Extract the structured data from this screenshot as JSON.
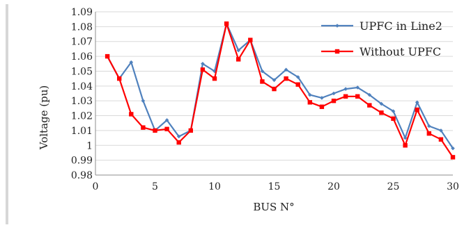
{
  "chart_data": {
    "type": "line",
    "title": "",
    "xlabel": "BUS N°",
    "ylabel": "Voltage (pu)",
    "xlim": [
      0,
      30
    ],
    "ylim": [
      0.98,
      1.09
    ],
    "x_ticks": [
      "0",
      "5",
      "10",
      "15",
      "20",
      "25",
      "30"
    ],
    "y_ticks": [
      "0.98",
      "0.99",
      "1",
      "1.01",
      "1.02",
      "1.03",
      "1.04",
      "1.05",
      "1.06",
      "1.07",
      "1.08",
      "1.09"
    ],
    "grid": "horizontal",
    "legend_position": "top-right",
    "x": [
      1,
      2,
      3,
      4,
      5,
      6,
      7,
      8,
      9,
      10,
      11,
      12,
      13,
      14,
      15,
      16,
      17,
      18,
      19,
      20,
      21,
      22,
      23,
      24,
      25,
      26,
      27,
      28,
      29,
      30
    ],
    "series": [
      {
        "name": "UPFC in Line2",
        "color": "#4f81bd",
        "marker": "diamond",
        "values": [
          1.06,
          1.045,
          1.056,
          1.03,
          1.01,
          1.017,
          1.006,
          1.01,
          1.055,
          1.05,
          1.082,
          1.064,
          1.071,
          1.05,
          1.044,
          1.051,
          1.046,
          1.034,
          1.032,
          1.035,
          1.038,
          1.039,
          1.034,
          1.028,
          1.023,
          1.005,
          1.029,
          1.013,
          1.01,
          0.998
        ]
      },
      {
        "name": "Without UPFC",
        "color": "#ff0000",
        "marker": "square",
        "values": [
          1.06,
          1.045,
          1.021,
          1.012,
          1.01,
          1.011,
          1.002,
          1.01,
          1.051,
          1.045,
          1.082,
          1.058,
          1.071,
          1.043,
          1.038,
          1.045,
          1.041,
          1.029,
          1.026,
          1.03,
          1.033,
          1.033,
          1.027,
          1.022,
          1.018,
          1.0,
          1.024,
          1.008,
          1.004,
          0.992
        ]
      }
    ]
  }
}
